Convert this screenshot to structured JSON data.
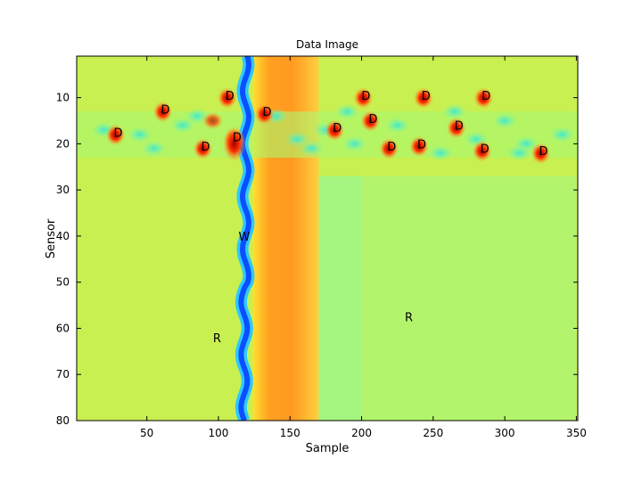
{
  "chart_data": {
    "type": "heatmap",
    "title": "Data Image",
    "xlabel": "Sample",
    "ylabel": "Sensor",
    "xlim": [
      1,
      351
    ],
    "ylim": [
      80,
      1
    ],
    "y_reversed": true,
    "xticks": [
      50,
      100,
      150,
      200,
      250,
      300,
      350
    ],
    "yticks": [
      10,
      20,
      30,
      40,
      50,
      60,
      70,
      80
    ],
    "grid": false,
    "colormap": "jet",
    "colors": {
      "background": "#c8f050",
      "wall_band": "#0a50ff",
      "warm_band": "#ff9a20",
      "cool_region": "#98f890"
    },
    "annotations": [
      {
        "text": "D",
        "x": 30,
        "y": 17.5
      },
      {
        "text": "D",
        "x": 63,
        "y": 12.5
      },
      {
        "text": "D",
        "x": 91,
        "y": 20.5
      },
      {
        "text": "D",
        "x": 108,
        "y": 9.5
      },
      {
        "text": "D",
        "x": 113,
        "y": 18.5
      },
      {
        "text": "D",
        "x": 134,
        "y": 13
      },
      {
        "text": "D",
        "x": 183,
        "y": 16.5
      },
      {
        "text": "D",
        "x": 203,
        "y": 9.5
      },
      {
        "text": "D",
        "x": 208,
        "y": 14.5
      },
      {
        "text": "D",
        "x": 221,
        "y": 20.5
      },
      {
        "text": "D",
        "x": 245,
        "y": 9.5
      },
      {
        "text": "D",
        "x": 242,
        "y": 20
      },
      {
        "text": "D",
        "x": 268,
        "y": 16
      },
      {
        "text": "D",
        "x": 287,
        "y": 9.5
      },
      {
        "text": "D",
        "x": 286,
        "y": 21
      },
      {
        "text": "D",
        "x": 327,
        "y": 21.5
      },
      {
        "text": "W",
        "x": 118,
        "y": 40
      },
      {
        "text": "R",
        "x": 99,
        "y": 62
      },
      {
        "text": "R",
        "x": 233,
        "y": 57.5
      }
    ]
  }
}
